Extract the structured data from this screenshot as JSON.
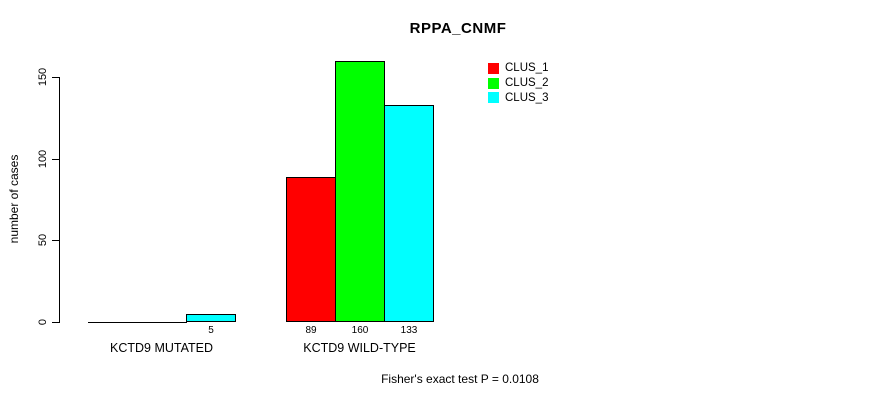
{
  "chart_data": {
    "type": "bar",
    "title": "RPPA_CNMF",
    "ylabel": "number of cases",
    "xlabel": "",
    "yticks": [
      0,
      50,
      100,
      150
    ],
    "ylim": [
      0,
      160
    ],
    "grid": false,
    "legend_position": "top-right",
    "categories": [
      "KCTD9 MUTATED",
      "KCTD9 WILD-TYPE"
    ],
    "series": [
      {
        "name": "CLUS_1",
        "color": "#FF0000",
        "values": [
          0,
          89
        ]
      },
      {
        "name": "CLUS_2",
        "color": "#00FF00",
        "values": [
          0,
          160
        ]
      },
      {
        "name": "CLUS_3",
        "color": "#00FFFF",
        "values": [
          5,
          133
        ]
      }
    ],
    "bar_value_labels": [
      [
        "",
        "",
        "5"
      ],
      [
        "89",
        "160",
        "133"
      ]
    ],
    "annotation": "Fisher's exact test P = 0.0108"
  }
}
